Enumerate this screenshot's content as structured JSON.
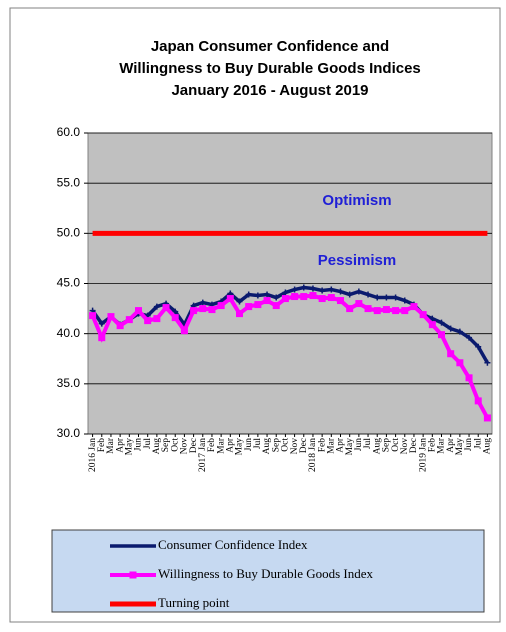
{
  "chart_data": {
    "type": "line",
    "title": [
      "Japan Consumer Confidence and",
      "Willingness to Buy Durable Goods Indices",
      "January 2016 - August 2019"
    ],
    "categories": [
      "2016 Jan",
      "Feb",
      "Mar",
      "Apr",
      "May",
      "Jun",
      "Jul",
      "Aug",
      "Sep",
      "Oct",
      "Nov",
      "Dec",
      "2017 Jan",
      "Feb",
      "Mar",
      "Apr",
      "May",
      "Jun",
      "Jul",
      "Aug",
      "Sep",
      "Oct",
      "Nov",
      "Dec",
      "2018 Jan",
      "Feb",
      "Mar",
      "Apr",
      "May",
      "Jun",
      "Jul",
      "Aug",
      "Sep",
      "Oct",
      "Nov",
      "Dec",
      "2019 Jan",
      "Feb",
      "Mar",
      "Apr",
      "May",
      "Jun",
      "Jul",
      "Aug"
    ],
    "series": [
      {
        "name": "Consumer Confidence Index",
        "color": "#0a1a6e",
        "values": [
          42.3,
          41.0,
          41.7,
          40.9,
          41.4,
          42.0,
          41.8,
          42.7,
          43.0,
          42.2,
          40.9,
          42.8,
          43.1,
          42.9,
          43.2,
          44.0,
          43.2,
          43.9,
          43.8,
          43.9,
          43.6,
          44.1,
          44.4,
          44.6,
          44.5,
          44.3,
          44.4,
          44.2,
          43.9,
          44.2,
          43.9,
          43.6,
          43.6,
          43.6,
          43.3,
          42.9,
          41.9,
          41.5,
          41.1,
          40.5,
          40.2,
          39.6,
          38.7,
          37.1
        ]
      },
      {
        "name": "Willingness to Buy Durable Goods Index",
        "color": "#ff00ff",
        "values": [
          41.8,
          39.6,
          41.7,
          40.8,
          41.4,
          42.3,
          41.3,
          41.5,
          42.6,
          41.6,
          40.3,
          42.3,
          42.5,
          42.4,
          42.8,
          43.5,
          42.0,
          42.7,
          42.9,
          43.3,
          42.8,
          43.5,
          43.7,
          43.7,
          43.8,
          43.5,
          43.6,
          43.3,
          42.5,
          43.0,
          42.5,
          42.3,
          42.4,
          42.3,
          42.3,
          42.7,
          41.9,
          40.9,
          39.9,
          38.0,
          37.1,
          35.6,
          33.3,
          31.6
        ]
      },
      {
        "name": "Turning point",
        "color": "#ff0000",
        "values": [
          50,
          50,
          50,
          50,
          50,
          50,
          50,
          50,
          50,
          50,
          50,
          50,
          50,
          50,
          50,
          50,
          50,
          50,
          50,
          50,
          50,
          50,
          50,
          50,
          50,
          50,
          50,
          50,
          50,
          50,
          50,
          50,
          50,
          50,
          50,
          50,
          50,
          50,
          50,
          50,
          50,
          50,
          50,
          50
        ]
      }
    ],
    "annotations": [
      "Optimism",
      "Pessimism"
    ],
    "ylim": [
      30,
      60
    ],
    "yticks": [
      {
        "value": 30,
        "label": "30.0"
      },
      {
        "value": 35,
        "label": "35.0"
      },
      {
        "value": 40,
        "label": "40.0"
      },
      {
        "value": 45,
        "label": "45.0"
      },
      {
        "value": 50,
        "label": "50.0"
      },
      {
        "value": 55,
        "label": "55.0"
      },
      {
        "value": 60,
        "label": "60.0"
      }
    ],
    "grid": true,
    "legend": "bottom"
  }
}
